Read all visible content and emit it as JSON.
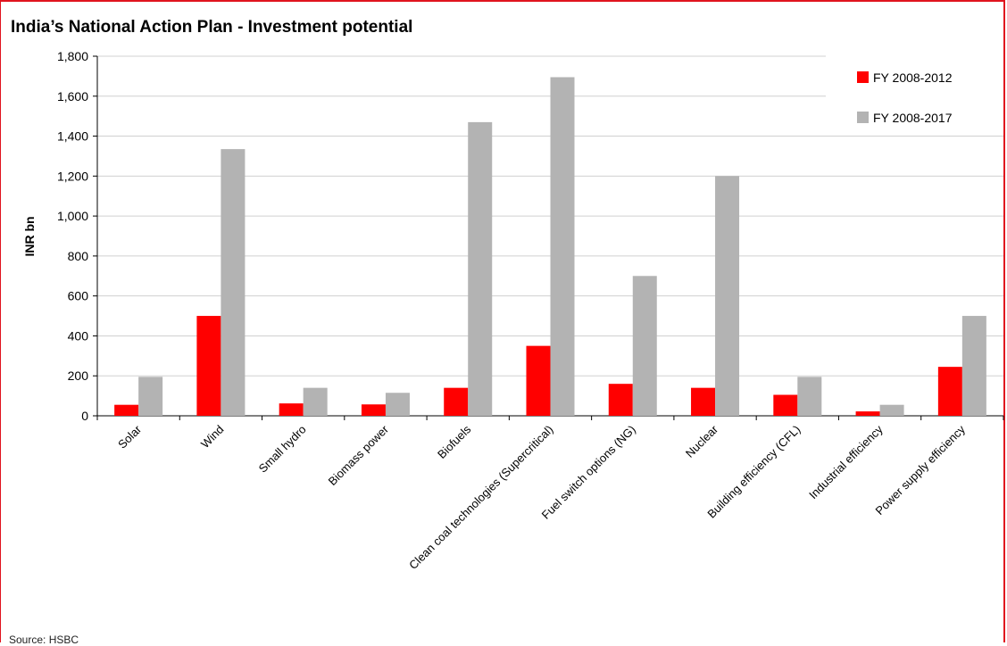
{
  "title": "India’s National Action Plan - Investment potential",
  "source": "Source: HSBC",
  "colors": {
    "frame": "#e0141e",
    "series1": "#ff0000",
    "series2": "#b3b3b3"
  },
  "chart_data": {
    "type": "bar",
    "title": "India’s National Action Plan - Investment potential",
    "xlabel": "",
    "ylabel": "INR bn",
    "ylim": [
      0,
      1800
    ],
    "yticks": [
      0,
      200,
      400,
      600,
      800,
      1000,
      1200,
      1400,
      1600,
      1800
    ],
    "ytick_labels": [
      "0",
      "200",
      "400",
      "600",
      "800",
      "1,000",
      "1,200",
      "1,400",
      "1,600",
      "1,800"
    ],
    "grid": true,
    "legend": "top-right",
    "categories": [
      "Solar",
      "Wind",
      "Small hydro",
      "Biomass power",
      "Biofuels",
      "Clean coal technologies (Supercritical)",
      "Fuel switch options (NG)",
      "Nuclear",
      "Building efficiency (CFL)",
      "Industrial efficiency",
      "Power supply efficiency"
    ],
    "series": [
      {
        "name": "FY 2008-2012",
        "color": "#ff0000",
        "values": [
          55,
          500,
          62,
          57,
          140,
          350,
          160,
          140,
          105,
          22,
          245
        ]
      },
      {
        "name": "FY 2008-2017",
        "color": "#b3b3b3",
        "values": [
          195,
          1335,
          140,
          115,
          1470,
          1695,
          700,
          1200,
          195,
          55,
          500
        ]
      }
    ]
  }
}
